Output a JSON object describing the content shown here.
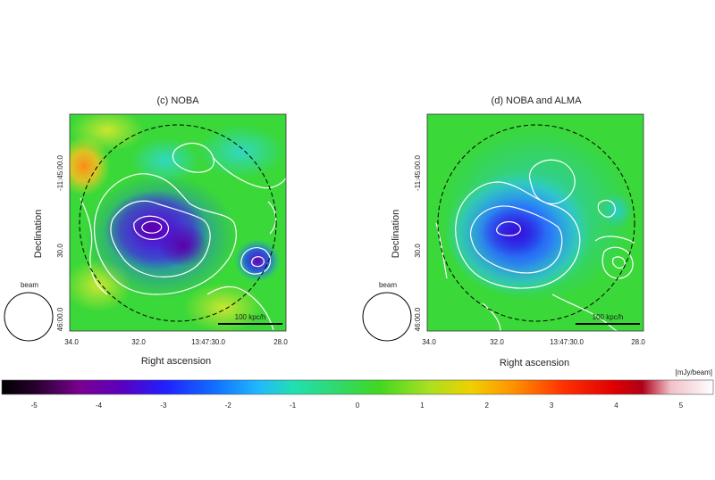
{
  "chart_data": [
    {
      "type": "heatmap",
      "title": "(c) NOBA",
      "xlabel": "Right ascension",
      "ylabel": "Declination",
      "x_ticks": [
        "34.0",
        "32.0",
        "13:47:30.0",
        "28.0"
      ],
      "y_ticks": [
        "-11:45:00.0",
        "30.0",
        "46:00.0"
      ],
      "beam_label": "beam",
      "scalebar_label": "100 kpc/h",
      "features": [
        {
          "kind": "min",
          "ra": "13:47:31.6",
          "dec": "-11:45:25",
          "value": -4.8
        },
        {
          "kind": "min",
          "ra": "13:47:30.9",
          "dec": "-11:45:31",
          "value": -4.5
        },
        {
          "kind": "min",
          "ra": "13:47:29.2",
          "dec": "-11:45:34",
          "value": -3.6
        },
        {
          "kind": "max",
          "ra": "13:47:33.8",
          "dec": "-11:45:00",
          "value": 2.6
        }
      ]
    },
    {
      "type": "heatmap",
      "title": "(d) NOBA and ALMA",
      "xlabel": "Right ascension",
      "ylabel": "Declination",
      "x_ticks": [
        "34.0",
        "32.0",
        "13:47:30.0",
        "28.0"
      ],
      "y_ticks": [
        "-11:45:00.0",
        "30.0",
        "46:00.0"
      ],
      "beam_label": "beam",
      "scalebar_label": "100 kpc/h",
      "features": [
        {
          "kind": "min",
          "ra": "13:47:31.6",
          "dec": "-11:45:25",
          "value": -3.5
        },
        {
          "kind": "min",
          "ra": "13:47:30.9",
          "dec": "-11:45:28",
          "value": -3.3
        }
      ]
    }
  ],
  "colorbar": {
    "unit": "[mJy/beam]",
    "min": -5.5,
    "max": 5.5,
    "ticks": [
      "-5",
      "-4",
      "-3",
      "-2",
      "-1",
      "0",
      "1",
      "2",
      "3",
      "4",
      "5"
    ],
    "ticks_values": [
      -5,
      -4,
      -3,
      -2,
      -1,
      0,
      1,
      2,
      3,
      4,
      5
    ]
  }
}
